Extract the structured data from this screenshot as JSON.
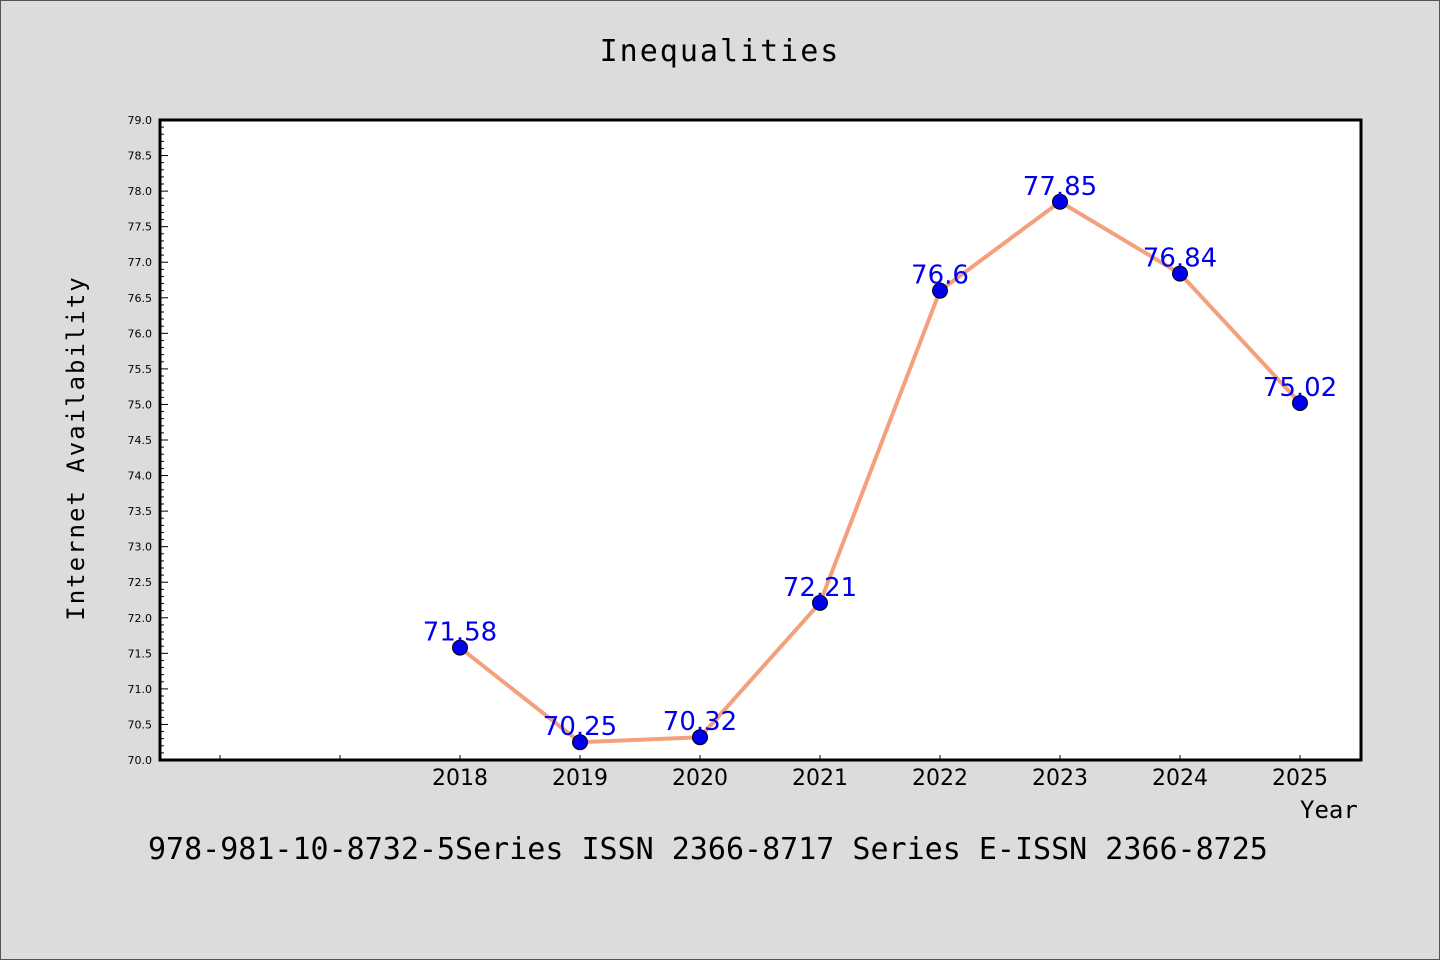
{
  "chart_data": {
    "type": "line",
    "title": "Inequalities",
    "xlabel": "Year",
    "ylabel": "Internet Availability",
    "categories": [
      "2018",
      "2019",
      "2020",
      "2021",
      "2022",
      "2023",
      "2024",
      "2025"
    ],
    "values": [
      71.58,
      70.25,
      70.32,
      72.21,
      76.6,
      77.85,
      76.84,
      75.02
    ],
    "data_labels": [
      "71.58",
      "70.25",
      "70.32",
      "72.21",
      "76.6",
      "77.85",
      "76.84",
      "75.02"
    ],
    "ylim": [
      70.0,
      79.0
    ],
    "y_ticks": [
      "70.0",
      "70.5",
      "71.0",
      "71.5",
      "72.0",
      "72.5",
      "73.0",
      "73.5",
      "74.0",
      "74.5",
      "75.0",
      "75.5",
      "76.0",
      "76.5",
      "77.0",
      "77.5",
      "78.0",
      "78.5",
      "79.0"
    ],
    "x_slots_before_first_category": 2,
    "grid": false,
    "line_color": "#f4a07c",
    "marker_color": "#0000ee",
    "label_color": "#0000ee"
  },
  "footer_text": "978-981-10-8732-5Series ISSN 2366-8717 Series E-ISSN 2366-8725"
}
